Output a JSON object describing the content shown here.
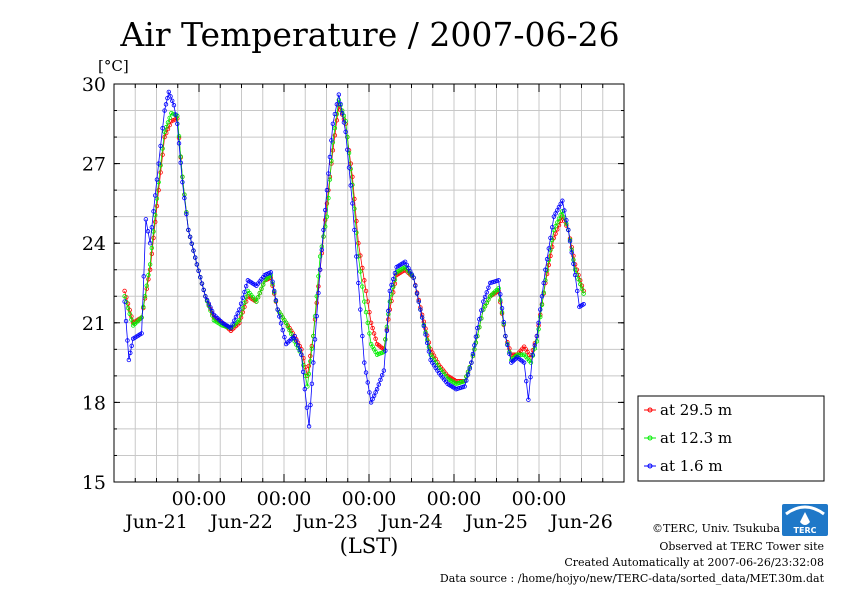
{
  "chart_data": {
    "type": "line",
    "title": "Air Temperature / 2007-06-26",
    "ylabel": "[°C]",
    "xlabel": "(LST)",
    "ylim": [
      15,
      30
    ],
    "yticks": [
      15,
      18,
      21,
      24,
      27,
      30
    ],
    "xlim_days": [
      0,
      6.25
    ],
    "x_time_ticks": [
      "00:00",
      "00:00",
      "00:00",
      "00:00",
      "00:00"
    ],
    "x_date_labels": [
      "Jun-21",
      "Jun-22",
      "Jun-23",
      "Jun-24",
      "Jun-25",
      "Jun-26"
    ],
    "grid": true,
    "legend_position": "right",
    "series": [
      {
        "name": "at 29.5 m",
        "color": "#ff0000",
        "points": [
          [
            0.0,
            22.2
          ],
          [
            0.1,
            21.0
          ],
          [
            0.2,
            21.2
          ],
          [
            0.3,
            23.0
          ],
          [
            0.4,
            26.0
          ],
          [
            0.47,
            28.0
          ],
          [
            0.55,
            28.6
          ],
          [
            0.62,
            28.7
          ],
          [
            0.68,
            26.5
          ],
          [
            0.75,
            24.5
          ],
          [
            0.85,
            23.2
          ],
          [
            0.95,
            22.0
          ],
          [
            1.05,
            21.2
          ],
          [
            1.15,
            21.0
          ],
          [
            1.25,
            20.7
          ],
          [
            1.35,
            21.0
          ],
          [
            1.45,
            22.0
          ],
          [
            1.55,
            21.8
          ],
          [
            1.65,
            22.6
          ],
          [
            1.72,
            22.7
          ],
          [
            1.8,
            21.5
          ],
          [
            1.9,
            21.0
          ],
          [
            2.0,
            20.5
          ],
          [
            2.08,
            20.0
          ],
          [
            2.15,
            19.0
          ],
          [
            2.22,
            20.5
          ],
          [
            2.3,
            23.0
          ],
          [
            2.38,
            25.5
          ],
          [
            2.45,
            27.5
          ],
          [
            2.52,
            29.2
          ],
          [
            2.6,
            28.5
          ],
          [
            2.68,
            26.5
          ],
          [
            2.75,
            24.0
          ],
          [
            2.82,
            22.6
          ],
          [
            2.9,
            21.0
          ],
          [
            2.97,
            20.2
          ],
          [
            3.05,
            20.0
          ],
          [
            3.12,
            21.5
          ],
          [
            3.2,
            22.8
          ],
          [
            3.3,
            23.0
          ],
          [
            3.4,
            22.7
          ],
          [
            3.5,
            21.3
          ],
          [
            3.6,
            20.0
          ],
          [
            3.7,
            19.4
          ],
          [
            3.8,
            19.0
          ],
          [
            3.9,
            18.8
          ],
          [
            4.0,
            18.8
          ],
          [
            4.08,
            19.5
          ],
          [
            4.15,
            20.5
          ],
          [
            4.22,
            21.5
          ],
          [
            4.3,
            22.0
          ],
          [
            4.4,
            22.2
          ],
          [
            4.48,
            20.5
          ],
          [
            4.55,
            19.8
          ],
          [
            4.62,
            19.8
          ],
          [
            4.7,
            20.1
          ],
          [
            4.78,
            19.7
          ],
          [
            4.85,
            20.5
          ],
          [
            4.95,
            22.5
          ],
          [
            5.05,
            24.2
          ],
          [
            5.15,
            25.0
          ],
          [
            5.22,
            24.5
          ],
          [
            5.3,
            23.2
          ],
          [
            5.4,
            22.2
          ]
        ]
      },
      {
        "name": "at 12.3 m",
        "color": "#00ee00",
        "points": [
          [
            0.0,
            22.0
          ],
          [
            0.1,
            20.9
          ],
          [
            0.2,
            21.2
          ],
          [
            0.3,
            23.2
          ],
          [
            0.4,
            26.3
          ],
          [
            0.47,
            28.2
          ],
          [
            0.55,
            28.9
          ],
          [
            0.62,
            28.8
          ],
          [
            0.68,
            26.5
          ],
          [
            0.75,
            24.5
          ],
          [
            0.85,
            23.2
          ],
          [
            0.95,
            22.0
          ],
          [
            1.05,
            21.1
          ],
          [
            1.15,
            20.9
          ],
          [
            1.25,
            20.8
          ],
          [
            1.35,
            21.1
          ],
          [
            1.45,
            22.2
          ],
          [
            1.55,
            21.8
          ],
          [
            1.65,
            22.6
          ],
          [
            1.72,
            22.8
          ],
          [
            1.8,
            21.5
          ],
          [
            1.9,
            21.0
          ],
          [
            2.0,
            20.3
          ],
          [
            2.08,
            19.8
          ],
          [
            2.15,
            18.6
          ],
          [
            2.22,
            20.5
          ],
          [
            2.3,
            23.5
          ],
          [
            2.38,
            25.0
          ],
          [
            2.45,
            27.8
          ],
          [
            2.52,
            29.4
          ],
          [
            2.6,
            28.6
          ],
          [
            2.68,
            26.2
          ],
          [
            2.75,
            23.5
          ],
          [
            2.82,
            21.8
          ],
          [
            2.9,
            20.2
          ],
          [
            2.97,
            19.8
          ],
          [
            3.05,
            19.9
          ],
          [
            3.12,
            21.8
          ],
          [
            3.2,
            22.9
          ],
          [
            3.3,
            23.1
          ],
          [
            3.4,
            22.7
          ],
          [
            3.5,
            21.2
          ],
          [
            3.6,
            19.8
          ],
          [
            3.7,
            19.3
          ],
          [
            3.8,
            18.9
          ],
          [
            3.9,
            18.7
          ],
          [
            4.0,
            18.8
          ],
          [
            4.08,
            19.5
          ],
          [
            4.15,
            20.5
          ],
          [
            4.22,
            21.5
          ],
          [
            4.3,
            22.0
          ],
          [
            4.4,
            22.3
          ],
          [
            4.48,
            20.5
          ],
          [
            4.55,
            19.6
          ],
          [
            4.62,
            19.8
          ],
          [
            4.7,
            19.8
          ],
          [
            4.78,
            19.5
          ],
          [
            4.85,
            20.3
          ],
          [
            4.95,
            22.6
          ],
          [
            5.05,
            24.5
          ],
          [
            5.15,
            25.2
          ],
          [
            5.22,
            24.5
          ],
          [
            5.3,
            23.0
          ],
          [
            5.4,
            22.1
          ]
        ]
      },
      {
        "name": "at 1.6 m",
        "color": "#0000ff",
        "points": [
          [
            0.0,
            21.8
          ],
          [
            0.05,
            19.6
          ],
          [
            0.1,
            20.4
          ],
          [
            0.2,
            20.6
          ],
          [
            0.25,
            24.9
          ],
          [
            0.3,
            24.0
          ],
          [
            0.4,
            27.0
          ],
          [
            0.47,
            29.0
          ],
          [
            0.52,
            29.7
          ],
          [
            0.58,
            29.2
          ],
          [
            0.62,
            28.5
          ],
          [
            0.68,
            26.3
          ],
          [
            0.75,
            24.5
          ],
          [
            0.85,
            23.2
          ],
          [
            0.95,
            22.0
          ],
          [
            1.05,
            21.3
          ],
          [
            1.15,
            21.0
          ],
          [
            1.25,
            20.8
          ],
          [
            1.35,
            21.5
          ],
          [
            1.45,
            22.6
          ],
          [
            1.55,
            22.4
          ],
          [
            1.65,
            22.8
          ],
          [
            1.72,
            22.9
          ],
          [
            1.8,
            21.5
          ],
          [
            1.9,
            20.2
          ],
          [
            2.0,
            20.5
          ],
          [
            2.08,
            19.8
          ],
          [
            2.12,
            18.5
          ],
          [
            2.17,
            17.1
          ],
          [
            2.22,
            19.5
          ],
          [
            2.3,
            23.0
          ],
          [
            2.38,
            26.0
          ],
          [
            2.45,
            28.5
          ],
          [
            2.52,
            29.6
          ],
          [
            2.6,
            28.2
          ],
          [
            2.68,
            25.5
          ],
          [
            2.75,
            22.5
          ],
          [
            2.82,
            19.5
          ],
          [
            2.9,
            18.0
          ],
          [
            2.97,
            18.5
          ],
          [
            3.05,
            19.2
          ],
          [
            3.12,
            22.2
          ],
          [
            3.2,
            23.1
          ],
          [
            3.3,
            23.3
          ],
          [
            3.4,
            22.7
          ],
          [
            3.5,
            21.2
          ],
          [
            3.6,
            19.6
          ],
          [
            3.7,
            19.1
          ],
          [
            3.8,
            18.7
          ],
          [
            3.9,
            18.5
          ],
          [
            4.0,
            18.6
          ],
          [
            4.08,
            19.5
          ],
          [
            4.15,
            20.8
          ],
          [
            4.22,
            21.8
          ],
          [
            4.3,
            22.5
          ],
          [
            4.4,
            22.6
          ],
          [
            4.48,
            20.5
          ],
          [
            4.55,
            19.5
          ],
          [
            4.62,
            19.7
          ],
          [
            4.7,
            19.5
          ],
          [
            4.75,
            18.1
          ],
          [
            4.8,
            19.8
          ],
          [
            4.85,
            20.5
          ],
          [
            4.95,
            23.0
          ],
          [
            5.05,
            25.0
          ],
          [
            5.15,
            25.6
          ],
          [
            5.22,
            24.5
          ],
          [
            5.3,
            22.8
          ],
          [
            5.35,
            21.6
          ],
          [
            5.4,
            21.7
          ]
        ]
      }
    ]
  },
  "footer": {
    "copyright": "©TERC, Univ. Tsukuba",
    "observed": "Observed at TERC Tower site",
    "created": "Created Automatically at 2007-06-26/23:32:08",
    "source": "Data source : /home/hojyo/new/TERC-data/sorted_data/MET.30m.dat"
  },
  "logo": {
    "text": "TERC"
  }
}
